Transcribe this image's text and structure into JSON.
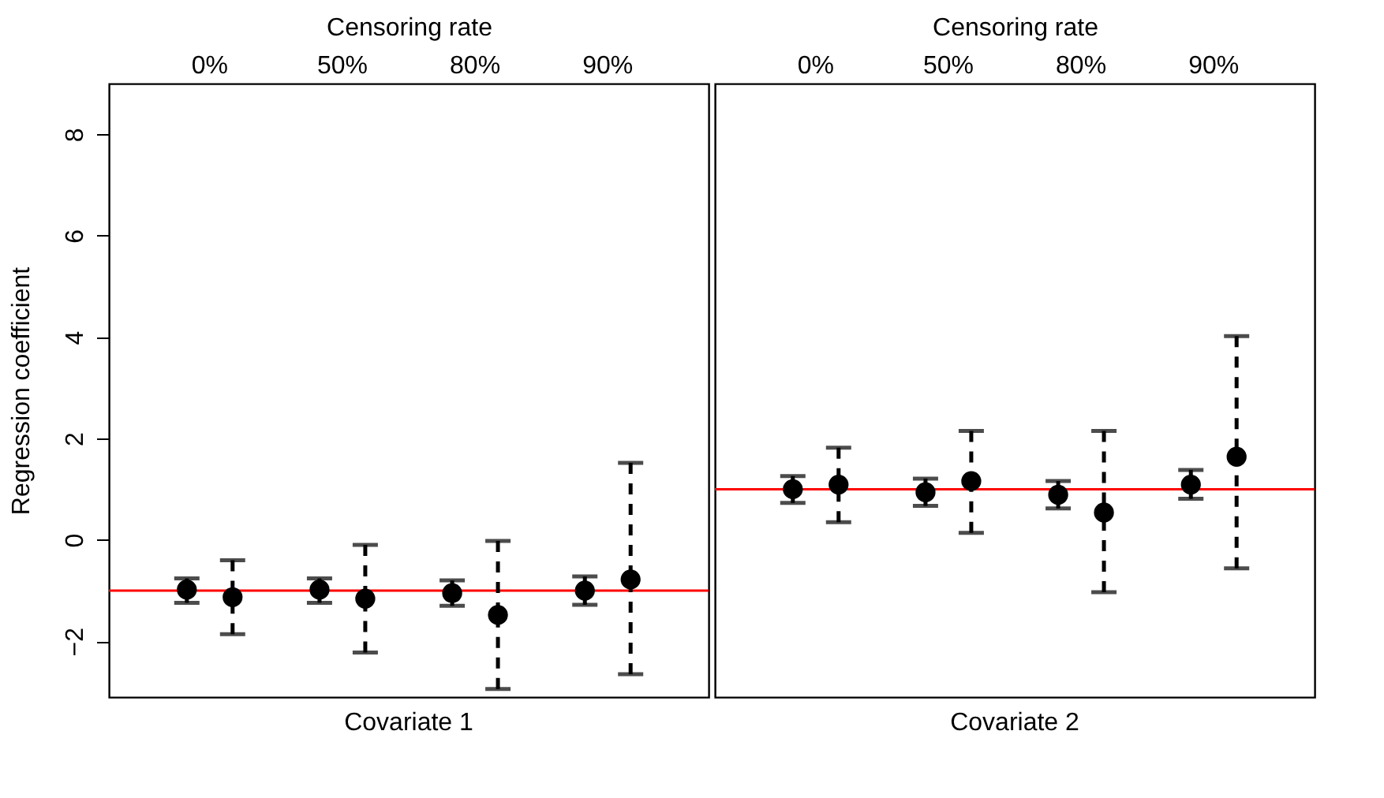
{
  "chart_data": [
    {
      "type": "scatter",
      "xlabel": "Covariate 1",
      "x2label": "Censoring rate",
      "ylabel": "Regression coefficient",
      "categories": [
        "0%",
        "50%",
        "80%",
        "90%"
      ],
      "ylim": [
        -3.1,
        9
      ],
      "yticks": [
        -2,
        0,
        2,
        4,
        6,
        8
      ],
      "marker": "circle",
      "grid": false,
      "legend": false,
      "series": [
        {
          "color": "#000000",
          "line_style": "solid",
          "values": [
            -0.98,
            -0.98,
            -1.05,
            -1.0
          ],
          "errors": [
            [
              -1.24,
              -0.76
            ],
            [
              -1.24,
              -0.76
            ],
            [
              -1.3,
              -0.8
            ],
            [
              -1.28,
              -0.72
            ]
          ]
        },
        {
          "color": "#000000",
          "line_style": "dashed",
          "values": [
            -1.13,
            -1.16,
            -1.48,
            -0.78
          ],
          "errors": [
            [
              -1.86,
              -0.4
            ],
            [
              -2.22,
              -0.1
            ],
            [
              -2.94,
              -0.02
            ],
            [
              -2.65,
              1.52
            ]
          ]
        }
      ],
      "ref_lines": [
        {
          "axis": "y",
          "value": -1,
          "color": "#ff0000"
        }
      ]
    },
    {
      "type": "scatter",
      "xlabel": "Covariate 2",
      "x2label": "Censoring rate",
      "categories": [
        "0%",
        "50%",
        "80%",
        "90%"
      ],
      "ylim": [
        -3.1,
        9
      ],
      "yticks": [
        -2,
        0,
        2,
        4,
        6,
        8
      ],
      "tick_labels": "x",
      "marker": "circle",
      "grid": false,
      "legend": false,
      "series": [
        {
          "color": "#000000",
          "line_style": "solid",
          "values": [
            1.0,
            0.94,
            0.89,
            1.09
          ],
          "errors": [
            [
              0.73,
              1.26
            ],
            [
              0.67,
              1.21
            ],
            [
              0.62,
              1.16
            ],
            [
              0.81,
              1.38
            ]
          ]
        },
        {
          "color": "#000000",
          "line_style": "dashed",
          "values": [
            1.09,
            1.16,
            0.54,
            1.64
          ],
          "errors": [
            [
              0.35,
              1.82
            ],
            [
              0.14,
              2.15
            ],
            [
              -1.03,
              2.15
            ],
            [
              -0.56,
              4.02
            ]
          ]
        }
      ],
      "ref_lines": [
        {
          "axis": "y",
          "value": 1,
          "color": "#ff0000"
        }
      ]
    }
  ]
}
